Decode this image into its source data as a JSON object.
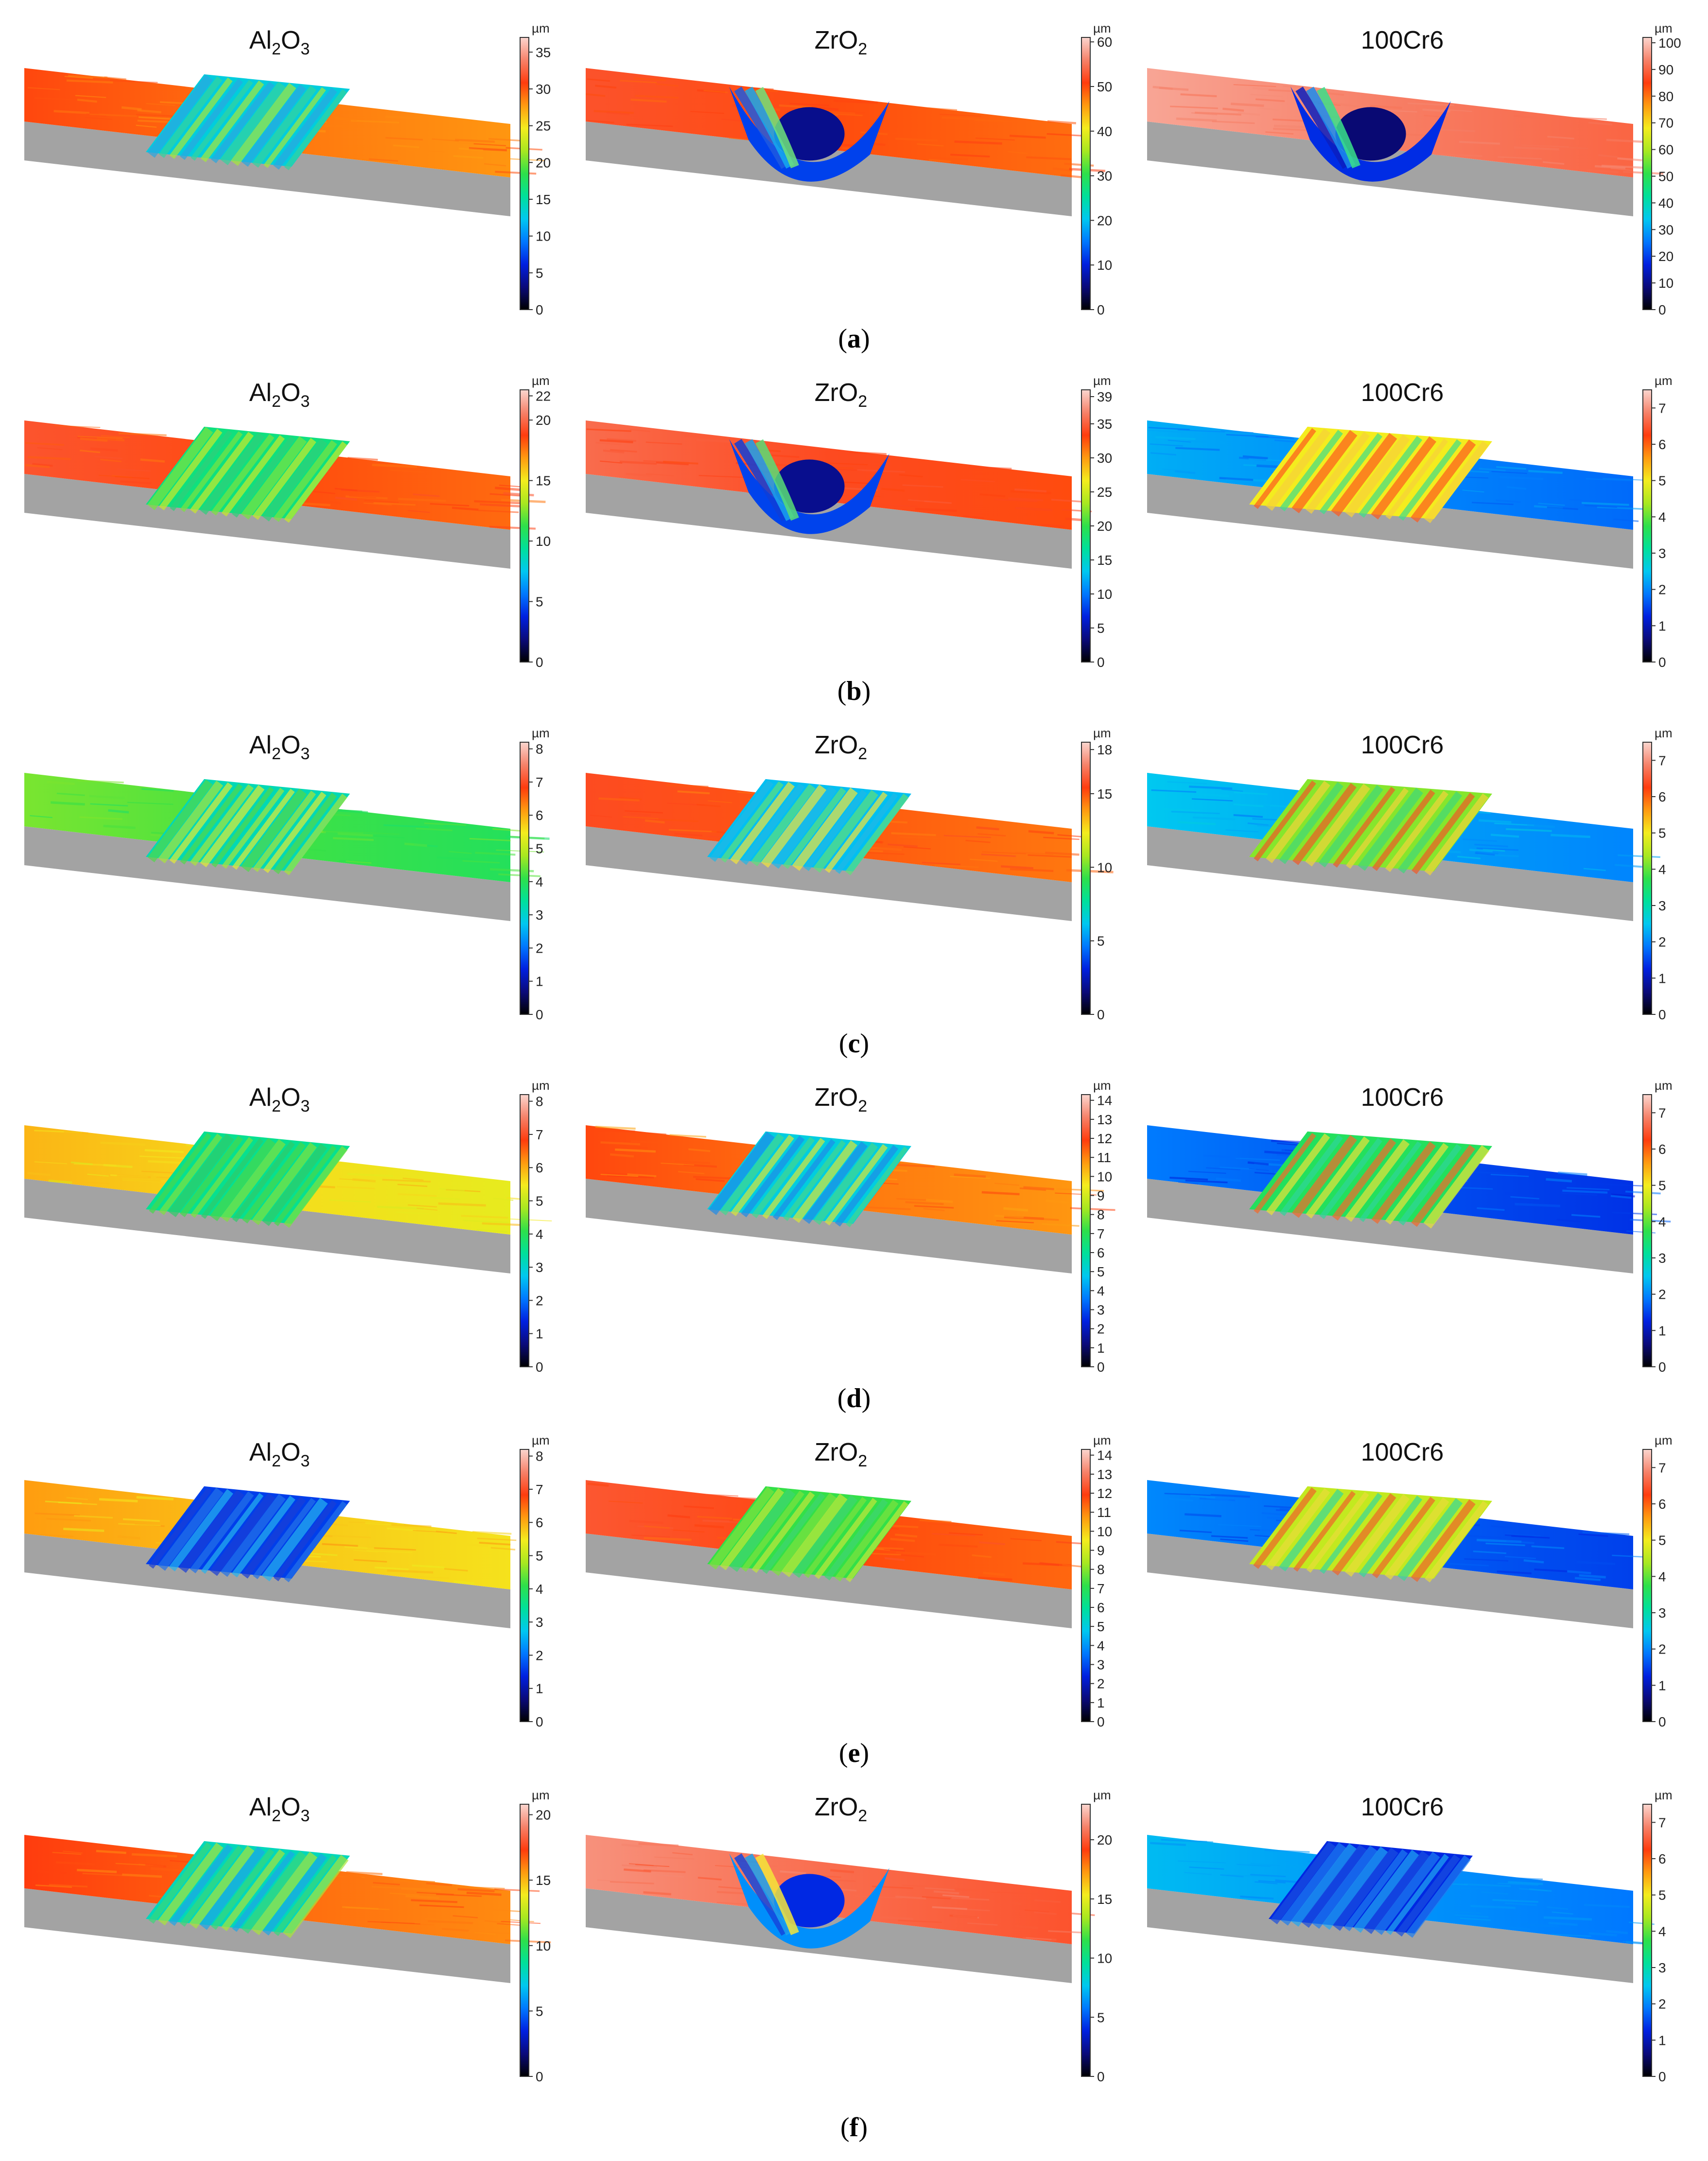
{
  "figure": {
    "unit_label": "µm",
    "rows": [
      {
        "caption_open": "(",
        "caption_letter": "a",
        "caption_close": ")",
        "panels": [
          {
            "material": "Al2O3",
            "title_main": "Al",
            "title_sub1": "2",
            "title_mid": "O",
            "title_sub2": "3",
            "colorbar": {
              "min": 0,
              "max": 37,
              "ticks": [
                0,
                5,
                10,
                15,
                20,
                25,
                30,
                35
              ]
            },
            "surface": {
              "base_level": 29,
              "wear_type": "groove",
              "wear_level": 13,
              "rough": 0.35,
              "streak_colors": [
                "#2ba7e0",
                "#35d39e",
                "#a6e83a"
              ]
            }
          },
          {
            "material": "ZrO2",
            "title_main": "ZrO",
            "title_sub1": "2",
            "title_mid": "",
            "title_sub2": "",
            "colorbar": {
              "min": 0,
              "max": 61,
              "ticks": [
                0,
                10,
                20,
                30,
                40,
                50,
                60
              ]
            },
            "surface": {
              "base_level": 50,
              "wear_type": "bowl",
              "wear_level": 6,
              "rough": 0.25,
              "streak_colors": [
                "#1e5adf",
                "#14a9f0",
                "#6fe37a"
              ]
            }
          },
          {
            "material": "100Cr6",
            "title_main": "100Cr6",
            "title_sub1": "",
            "title_mid": "",
            "title_sub2": "",
            "colorbar": {
              "min": 0,
              "max": 102,
              "ticks": [
                0,
                10,
                20,
                30,
                40,
                50,
                60,
                70,
                80,
                90,
                100
              ]
            },
            "surface": {
              "base_level": 93,
              "wear_type": "bowl",
              "wear_level": 8,
              "rough": 0.15,
              "streak_colors": [
                "#0b1fbf",
                "#1a8cf0",
                "#39e08a"
              ]
            }
          }
        ]
      },
      {
        "caption_open": "(",
        "caption_letter": "b",
        "caption_close": ")",
        "panels": [
          {
            "material": "Al2O3",
            "title_main": "Al",
            "title_sub1": "2",
            "title_mid": "O",
            "title_sub2": "3",
            "colorbar": {
              "min": 0,
              "max": 22.5,
              "ticks": [
                0,
                5,
                10,
                15,
                20,
                22
              ]
            },
            "surface": {
              "base_level": 18.5,
              "wear_type": "groove",
              "wear_level": 10,
              "rough": 0.35,
              "streak_colors": [
                "#7be33f",
                "#c9ea2a",
                "#2fcf7a"
              ]
            }
          },
          {
            "material": "ZrO2",
            "title_main": "ZrO",
            "title_sub1": "2",
            "title_mid": "",
            "title_sub2": "",
            "colorbar": {
              "min": 0,
              "max": 40,
              "ticks": [
                0,
                5,
                10,
                15,
                20,
                25,
                30,
                35,
                39
              ]
            },
            "surface": {
              "base_level": 34,
              "wear_type": "bowl",
              "wear_level": 4,
              "rough": 0.25,
              "streak_colors": [
                "#0e3ed8",
                "#19a2ee",
                "#58dd76"
              ]
            }
          },
          {
            "material": "100Cr6",
            "title_main": "100Cr6",
            "title_sub1": "",
            "title_mid": "",
            "title_sub2": "",
            "colorbar": {
              "min": 0,
              "max": 7.5,
              "ticks": [
                0,
                1,
                2,
                3,
                4,
                5,
                6,
                7
              ]
            },
            "surface": {
              "base_level": 2.0,
              "wear_type": "band",
              "wear_level": 5.0,
              "rough": 0.4,
              "streak_colors": [
                "#ff5a1e",
                "#f7d23a",
                "#3edf8a"
              ]
            }
          }
        ]
      },
      {
        "caption_open": "(",
        "caption_letter": "c",
        "caption_close": ")",
        "panels": [
          {
            "material": "Al2O3",
            "title_main": "Al",
            "title_sub1": "2",
            "title_mid": "O",
            "title_sub2": "3",
            "colorbar": {
              "min": 0,
              "max": 8.2,
              "ticks": [
                0,
                1,
                2,
                3,
                4,
                5,
                6,
                7,
                8
              ]
            },
            "surface": {
              "base_level": 4.2,
              "wear_type": "groove",
              "wear_level": 3.2,
              "rough": 0.4,
              "streak_colors": [
                "#52d84a",
                "#a9e53a",
                "#e2ec36"
              ]
            }
          },
          {
            "material": "ZrO2",
            "title_main": "ZrO",
            "title_sub1": "2",
            "title_mid": "",
            "title_sub2": "",
            "colorbar": {
              "min": 0,
              "max": 18.5,
              "ticks": [
                0,
                5,
                10,
                15,
                18
              ]
            },
            "surface": {
              "base_level": 15,
              "wear_type": "groove",
              "wear_level": 6,
              "rough": 0.35,
              "streak_colors": [
                "#22b8e6",
                "#5fe07a",
                "#f4e53a"
              ]
            }
          },
          {
            "material": "100Cr6",
            "title_main": "100Cr6",
            "title_sub1": "",
            "title_mid": "",
            "title_sub2": "",
            "colorbar": {
              "min": 0,
              "max": 7.5,
              "ticks": [
                0,
                1,
                2,
                3,
                4,
                5,
                6,
                7
              ]
            },
            "surface": {
              "base_level": 2.2,
              "wear_type": "band",
              "wear_level": 4.2,
              "rough": 0.45,
              "streak_colors": [
                "#f25a26",
                "#f1d43a",
                "#3fd87a"
              ]
            }
          }
        ]
      },
      {
        "caption_open": "(",
        "caption_letter": "d",
        "caption_close": ")",
        "panels": [
          {
            "material": "Al2O3",
            "title_main": "Al",
            "title_sub1": "2",
            "title_mid": "O",
            "title_sub2": "3",
            "colorbar": {
              "min": 0,
              "max": 8.2,
              "ticks": [
                0,
                1,
                2,
                3,
                4,
                5,
                6,
                7,
                8
              ]
            },
            "surface": {
              "base_level": 5.6,
              "wear_type": "groove",
              "wear_level": 3.5,
              "rough": 0.4,
              "streak_colors": [
                "#46d84c",
                "#7fe23e",
                "#2fcb6a"
              ]
            }
          },
          {
            "material": "ZrO2",
            "title_main": "ZrO",
            "title_sub1": "2",
            "title_mid": "",
            "title_sub2": "",
            "colorbar": {
              "min": 0,
              "max": 14.3,
              "ticks": [
                0,
                1,
                2,
                3,
                4,
                5,
                6,
                7,
                8,
                9,
                10,
                11,
                12,
                13,
                14
              ]
            },
            "surface": {
              "base_level": 11.2,
              "wear_type": "groove",
              "wear_level": 5,
              "rough": 0.4,
              "streak_colors": [
                "#1f8ce8",
                "#43d88f",
                "#d8e73a"
              ]
            }
          },
          {
            "material": "100Cr6",
            "title_main": "100Cr6",
            "title_sub1": "",
            "title_mid": "",
            "title_sub2": "",
            "colorbar": {
              "min": 0,
              "max": 7.5,
              "ticks": [
                0,
                1,
                2,
                3,
                4,
                5,
                6,
                7
              ]
            },
            "surface": {
              "base_level": 1.6,
              "wear_type": "band",
              "wear_level": 3.6,
              "rough": 0.45,
              "streak_colors": [
                "#f46a2a",
                "#e9e23a",
                "#2fd59a"
              ]
            }
          }
        ]
      },
      {
        "caption_open": "(",
        "caption_letter": "e",
        "caption_close": ")",
        "panels": [
          {
            "material": "Al2O3",
            "title_main": "Al",
            "title_sub1": "2",
            "title_mid": "O",
            "title_sub2": "3",
            "colorbar": {
              "min": 0,
              "max": 8.2,
              "ticks": [
                0,
                1,
                2,
                3,
                4,
                5,
                6,
                7,
                8
              ]
            },
            "surface": {
              "base_level": 5.8,
              "wear_type": "groove",
              "wear_level": 1.6,
              "rough": 0.45,
              "streak_colors": [
                "#1a3fd6",
                "#2474e8",
                "#25b4ef"
              ]
            }
          },
          {
            "material": "ZrO2",
            "title_main": "ZrO",
            "title_sub1": "2",
            "title_mid": "",
            "title_sub2": "",
            "colorbar": {
              "min": 0,
              "max": 14.3,
              "ticks": [
                0,
                1,
                2,
                3,
                4,
                5,
                6,
                7,
                8,
                9,
                10,
                11,
                12,
                13,
                14
              ]
            },
            "surface": {
              "base_level": 11.8,
              "wear_type": "groove",
              "wear_level": 7.2,
              "rough": 0.4,
              "streak_colors": [
                "#7ee23e",
                "#c2e83a",
                "#3fd672"
              ]
            }
          },
          {
            "material": "100Cr6",
            "title_main": "100Cr6",
            "title_sub1": "",
            "title_mid": "",
            "title_sub2": "",
            "colorbar": {
              "min": 0,
              "max": 7.5,
              "ticks": [
                0,
                1,
                2,
                3,
                4,
                5,
                6,
                7
              ]
            },
            "surface": {
              "base_level": 1.7,
              "wear_type": "band",
              "wear_level": 4.6,
              "rough": 0.45,
              "streak_colors": [
                "#f0642a",
                "#e9dd3a",
                "#37d89a"
              ]
            }
          }
        ]
      },
      {
        "caption_open": "(",
        "caption_letter": "f",
        "caption_close": ")",
        "panels": [
          {
            "material": "Al2O3",
            "title_main": "Al",
            "title_sub1": "2",
            "title_mid": "O",
            "title_sub2": "3",
            "colorbar": {
              "min": 0,
              "max": 20.8,
              "ticks": [
                0,
                5,
                10,
                15,
                20
              ]
            },
            "surface": {
              "base_level": 16.5,
              "wear_type": "groove",
              "wear_level": 8,
              "rough": 0.3,
              "streak_colors": [
                "#3ad87a",
                "#a9e53a",
                "#1fa6e6"
              ]
            }
          },
          {
            "material": "ZrO2",
            "title_main": "ZrO",
            "title_sub1": "2",
            "title_mid": "",
            "title_sub2": "",
            "colorbar": {
              "min": 0,
              "max": 23,
              "ticks": [
                0,
                5,
                10,
                15,
                20
              ]
            },
            "surface": {
              "base_level": 20.5,
              "wear_type": "bowl",
              "wear_level": 4,
              "rough": 0.3,
              "streak_colors": [
                "#1446dc",
                "#1aa2ef",
                "#f4e53a"
              ]
            }
          },
          {
            "material": "100Cr6",
            "title_main": "100Cr6",
            "title_sub1": "",
            "title_mid": "",
            "title_sub2": "",
            "colorbar": {
              "min": 0,
              "max": 7.5,
              "ticks": [
                0,
                1,
                2,
                3,
                4,
                5,
                6,
                7
              ]
            },
            "surface": {
              "base_level": 2.1,
              "wear_type": "groove",
              "wear_level": 1.3,
              "rough": 0.15,
              "streak_colors": [
                "#1a4fe0",
                "#1e7ff0",
                "#22a8f2"
              ]
            }
          }
        ]
      }
    ]
  },
  "colormap": [
    "#000000",
    "#0a0a7a",
    "#0020e0",
    "#0078ff",
    "#00c8f0",
    "#00e09a",
    "#2ee04a",
    "#a8e820",
    "#f4ec1e",
    "#ff9a10",
    "#ff3c0e",
    "#f6826a",
    "#fbd6cf"
  ]
}
